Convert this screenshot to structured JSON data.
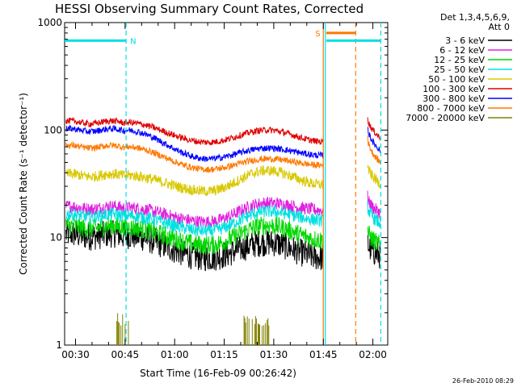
{
  "chart_data": {
    "type": "line",
    "title": "HESSI Observing Summary Count Rates, Corrected",
    "xlabel": "Start Time (16-Feb-09 00:26:42)",
    "ylabel": "Corrected Count Rate (s⁻¹ detector⁻¹)",
    "yscale": "log",
    "ylim": [
      1,
      1000
    ],
    "xlim_minutes": [
      26.7,
      124.5
    ],
    "yticks": [
      {
        "value": 1,
        "label": "1"
      },
      {
        "value": 10,
        "label": "10"
      },
      {
        "value": 100,
        "label": "100"
      },
      {
        "value": 1000,
        "label": "1000"
      }
    ],
    "xticks": [
      {
        "value": 30,
        "label": "00:30"
      },
      {
        "value": 45,
        "label": "00:45"
      },
      {
        "value": 60,
        "label": "01:00"
      },
      {
        "value": 75,
        "label": "01:15"
      },
      {
        "value": 90,
        "label": "01:30"
      },
      {
        "value": 105,
        "label": "01:45"
      },
      {
        "value": 120,
        "label": "02:00"
      }
    ],
    "legend_header": [
      "Det 1,3,4,5,6,9,",
      "Att 0"
    ],
    "legend_placement": "right",
    "grid": false,
    "series": [
      {
        "name": "3 - 6 keV",
        "color": "#000000",
        "base": 10.5,
        "trough": 6.5,
        "hump": 9.0,
        "end": 6.5,
        "post": [
          9.0,
          6.8
        ],
        "noise": 0.13
      },
      {
        "name": "6 - 12 keV",
        "color": "#e020e0",
        "base": 19.0,
        "trough": 14.0,
        "hump": 21.0,
        "end": 18.0,
        "post": [
          24.0,
          17.0
        ],
        "noise": 0.06
      },
      {
        "name": "12 - 25 keV",
        "color": "#00d800",
        "base": 12.5,
        "trough": 8.5,
        "hump": 13.0,
        "end": 9.5,
        "post": [
          12.0,
          8.5
        ],
        "noise": 0.09
      },
      {
        "name": "25 - 50 keV",
        "color": "#00e0e0",
        "base": 16.0,
        "trough": 11.5,
        "hump": 17.5,
        "end": 14.5,
        "post": [
          20.0,
          13.5
        ],
        "noise": 0.06
      },
      {
        "name": "50 - 100 keV",
        "color": "#d8c800",
        "base": 38.0,
        "trough": 27.0,
        "hump": 42.0,
        "end": 31.0,
        "post": [
          48.0,
          32.0
        ],
        "noise": 0.05
      },
      {
        "name": "100 - 300 keV",
        "color": "#e00000",
        "base": 118.0,
        "trough": 77.0,
        "hump": 100.0,
        "end": 78.0,
        "post": [
          135.0,
          85.0
        ],
        "noise": 0.03
      },
      {
        "name": "300 - 800 keV",
        "color": "#0000ff",
        "base": 100.0,
        "trough": 54.0,
        "hump": 68.0,
        "end": 58.0,
        "post": [
          110.0,
          65.0
        ],
        "noise": 0.03
      },
      {
        "name": "800 - 7000 keV",
        "color": "#ff7800",
        "base": 70.0,
        "trough": 43.0,
        "hump": 54.0,
        "end": 47.0,
        "post": [
          88.0,
          50.0
        ],
        "noise": 0.03
      },
      {
        "name": "7000 - 20000 keV",
        "color": "#808000",
        "base": 1.0,
        "trough": 1.0,
        "hump": 1.0,
        "end": 1.0,
        "post": [
          1.0,
          1.0
        ],
        "noise": 0.0
      }
    ],
    "gaps": [
      {
        "from": 105.5,
        "to": 118.4
      }
    ],
    "spikes_7000": [
      {
        "from": 42.0,
        "to": 46.0,
        "max": 2.0
      },
      {
        "from": 81.0,
        "to": 88.5,
        "max": 2.0
      }
    ],
    "flags": [
      {
        "label": "N",
        "color": "#00e0e0",
        "x": 45.3,
        "from": 26.7,
        "to": 45.3,
        "level": 680
      },
      {
        "label": "S",
        "color": "#ff7800",
        "x": 105.0,
        "from": 105.9,
        "to": 114.8,
        "level": 800
      }
    ],
    "markers": [
      {
        "x": 105.0,
        "color": "#ff7800",
        "style": "solid"
      },
      {
        "x": 105.6,
        "color": "#00e0e0",
        "style": "solid"
      },
      {
        "x": 114.8,
        "color": "#ff7800",
        "style": "dashed"
      },
      {
        "x": 122.4,
        "color": "#00e0e0",
        "style": "dashed"
      }
    ],
    "cyan_band": {
      "from": 105.9,
      "to": 122.4,
      "level": 680
    }
  },
  "timestamp": "26-Feb-2010 08:29"
}
